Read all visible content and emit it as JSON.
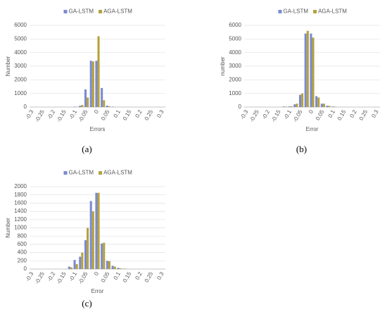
{
  "chart_data": [
    {
      "type": "bar",
      "xlabel": "Errors",
      "ylabel": "Number",
      "caption": "(a)",
      "categories": [
        "-0.3",
        null,
        "-0.25",
        null,
        "-0.2",
        null,
        "-0.15",
        null,
        "-0.1",
        null,
        "-0.05",
        null,
        "0",
        null,
        "0.05",
        null,
        "0.1",
        null,
        "0.15",
        null,
        "0.2",
        null,
        "0.25",
        null,
        "0.3"
      ],
      "series": [
        {
          "name": "GA-LSTM",
          "color": "#7b8ad3",
          "values": [
            0,
            0,
            0,
            0,
            0,
            0,
            0,
            0,
            30,
            100,
            1300,
            3400,
            3400,
            1400,
            100,
            30,
            0,
            0,
            0,
            0,
            0,
            0,
            0,
            0,
            0
          ]
        },
        {
          "name": "AGA-LSTM",
          "color": "#b5a23a",
          "values": [
            0,
            0,
            0,
            0,
            0,
            0,
            0,
            0,
            20,
            150,
            700,
            3350,
            5200,
            500,
            50,
            10,
            0,
            0,
            0,
            0,
            0,
            0,
            0,
            0,
            0
          ]
        }
      ],
      "ylim": [
        0,
        6000
      ],
      "yticks": [
        0,
        1000,
        2000,
        3000,
        4000,
        5000,
        6000
      ],
      "grid": true,
      "legend": "top"
    },
    {
      "type": "bar",
      "xlabel": "Error",
      "ylabel": "number",
      "caption": "(b)",
      "categories": [
        "-0.3",
        null,
        "-0.25",
        null,
        "-0.2",
        null,
        "-0.15",
        null,
        "-0.1",
        null,
        "-0.05",
        null,
        "0",
        null,
        "0.05",
        null,
        "0.1",
        null,
        "0.15",
        null,
        "0.2",
        null,
        "0.25",
        null,
        "0.3"
      ],
      "series": [
        {
          "name": "GA-LSTM",
          "color": "#7b8ad3",
          "values": [
            0,
            0,
            0,
            0,
            0,
            0,
            0,
            40,
            50,
            200,
            900,
            5400,
            5400,
            800,
            250,
            100,
            40,
            0,
            0,
            0,
            0,
            0,
            0,
            0,
            0
          ]
        },
        {
          "name": "AGA-LSTM",
          "color": "#b5a23a",
          "values": [
            0,
            0,
            0,
            0,
            0,
            0,
            0,
            30,
            50,
            250,
            1000,
            5600,
            5100,
            700,
            250,
            80,
            30,
            0,
            0,
            0,
            0,
            0,
            0,
            0,
            0
          ]
        }
      ],
      "ylim": [
        0,
        6000
      ],
      "yticks": [
        0,
        1000,
        2000,
        3000,
        4000,
        5000,
        6000
      ],
      "grid": true,
      "legend": "top"
    },
    {
      "type": "bar",
      "xlabel": "Error",
      "ylabel": "Number",
      "caption": "(c)",
      "categories": [
        "-0.3",
        null,
        "-0.25",
        null,
        "-0.2",
        null,
        "-0.15",
        null,
        "-0.1",
        null,
        "-0.05",
        null,
        "0",
        null,
        "0.05",
        null,
        "0.1",
        null,
        "0.15",
        null,
        "0.2",
        null,
        "0.25",
        null,
        "0.3"
      ],
      "series": [
        {
          "name": "GA-LSTM",
          "color": "#7b8ad3",
          "values": [
            0,
            0,
            0,
            0,
            0,
            0,
            0,
            60,
            220,
            300,
            700,
            1650,
            1850,
            620,
            200,
            80,
            30,
            10,
            0,
            0,
            0,
            0,
            0,
            0,
            0
          ]
        },
        {
          "name": "AGA-LSTM",
          "color": "#b5a23a",
          "values": [
            0,
            0,
            0,
            0,
            0,
            0,
            0,
            40,
            120,
            400,
            1000,
            1400,
            1850,
            640,
            190,
            60,
            20,
            10,
            0,
            0,
            0,
            0,
            0,
            0,
            0
          ]
        }
      ],
      "ylim": [
        0,
        2000
      ],
      "yticks": [
        0,
        200,
        400,
        600,
        800,
        1000,
        1200,
        1400,
        1600,
        1800,
        2000
      ],
      "grid": true,
      "legend": "top"
    }
  ]
}
